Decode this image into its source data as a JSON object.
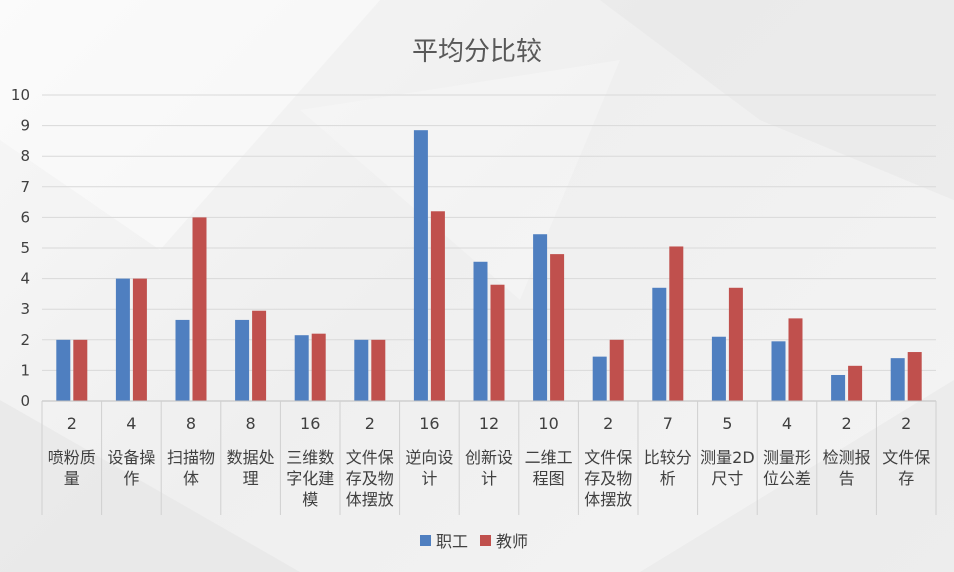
{
  "chart_data": {
    "type": "bar",
    "title": "平均分比较",
    "xlabel": "",
    "ylabel": "",
    "ylim": [
      0,
      10
    ],
    "yticks": [
      0,
      1,
      2,
      3,
      4,
      5,
      6,
      7,
      8,
      9,
      10
    ],
    "grid": true,
    "legend_position": "bottom",
    "categories": [
      {
        "count": "2",
        "lines": [
          "喷粉质",
          "量"
        ]
      },
      {
        "count": "4",
        "lines": [
          "设备操",
          "作"
        ]
      },
      {
        "count": "8",
        "lines": [
          "扫描物",
          "体"
        ]
      },
      {
        "count": "8",
        "lines": [
          "数据处",
          "理"
        ]
      },
      {
        "count": "16",
        "lines": [
          "三维数",
          "字化建",
          "模"
        ]
      },
      {
        "count": "2",
        "lines": [
          "文件保",
          "存及物",
          "体摆放"
        ]
      },
      {
        "count": "16",
        "lines": [
          "逆向设",
          "计"
        ]
      },
      {
        "count": "12",
        "lines": [
          "创新设",
          "计"
        ]
      },
      {
        "count": "10",
        "lines": [
          "二维工",
          "程图"
        ]
      },
      {
        "count": "2",
        "lines": [
          "文件保",
          "存及物",
          "体摆放"
        ]
      },
      {
        "count": "7",
        "lines": [
          "比较分",
          "析"
        ]
      },
      {
        "count": "5",
        "lines": [
          "测量2D",
          "尺寸"
        ]
      },
      {
        "count": "4",
        "lines": [
          "测量形",
          "位公差"
        ]
      },
      {
        "count": "2",
        "lines": [
          "检测报",
          "告"
        ]
      },
      {
        "count": "2",
        "lines": [
          "文件保",
          "存"
        ]
      }
    ],
    "series": [
      {
        "name": "职工",
        "color": "#4f7fc0",
        "values": [
          2.0,
          4.0,
          2.65,
          2.65,
          2.15,
          2.0,
          8.85,
          4.55,
          5.45,
          1.45,
          3.7,
          2.1,
          1.95,
          0.85,
          1.4
        ]
      },
      {
        "name": "教师",
        "color": "#c0504d",
        "values": [
          2.0,
          4.0,
          6.0,
          2.95,
          2.2,
          2.0,
          6.2,
          3.8,
          4.8,
          2.0,
          5.05,
          3.7,
          2.7,
          1.15,
          1.6
        ]
      }
    ]
  }
}
